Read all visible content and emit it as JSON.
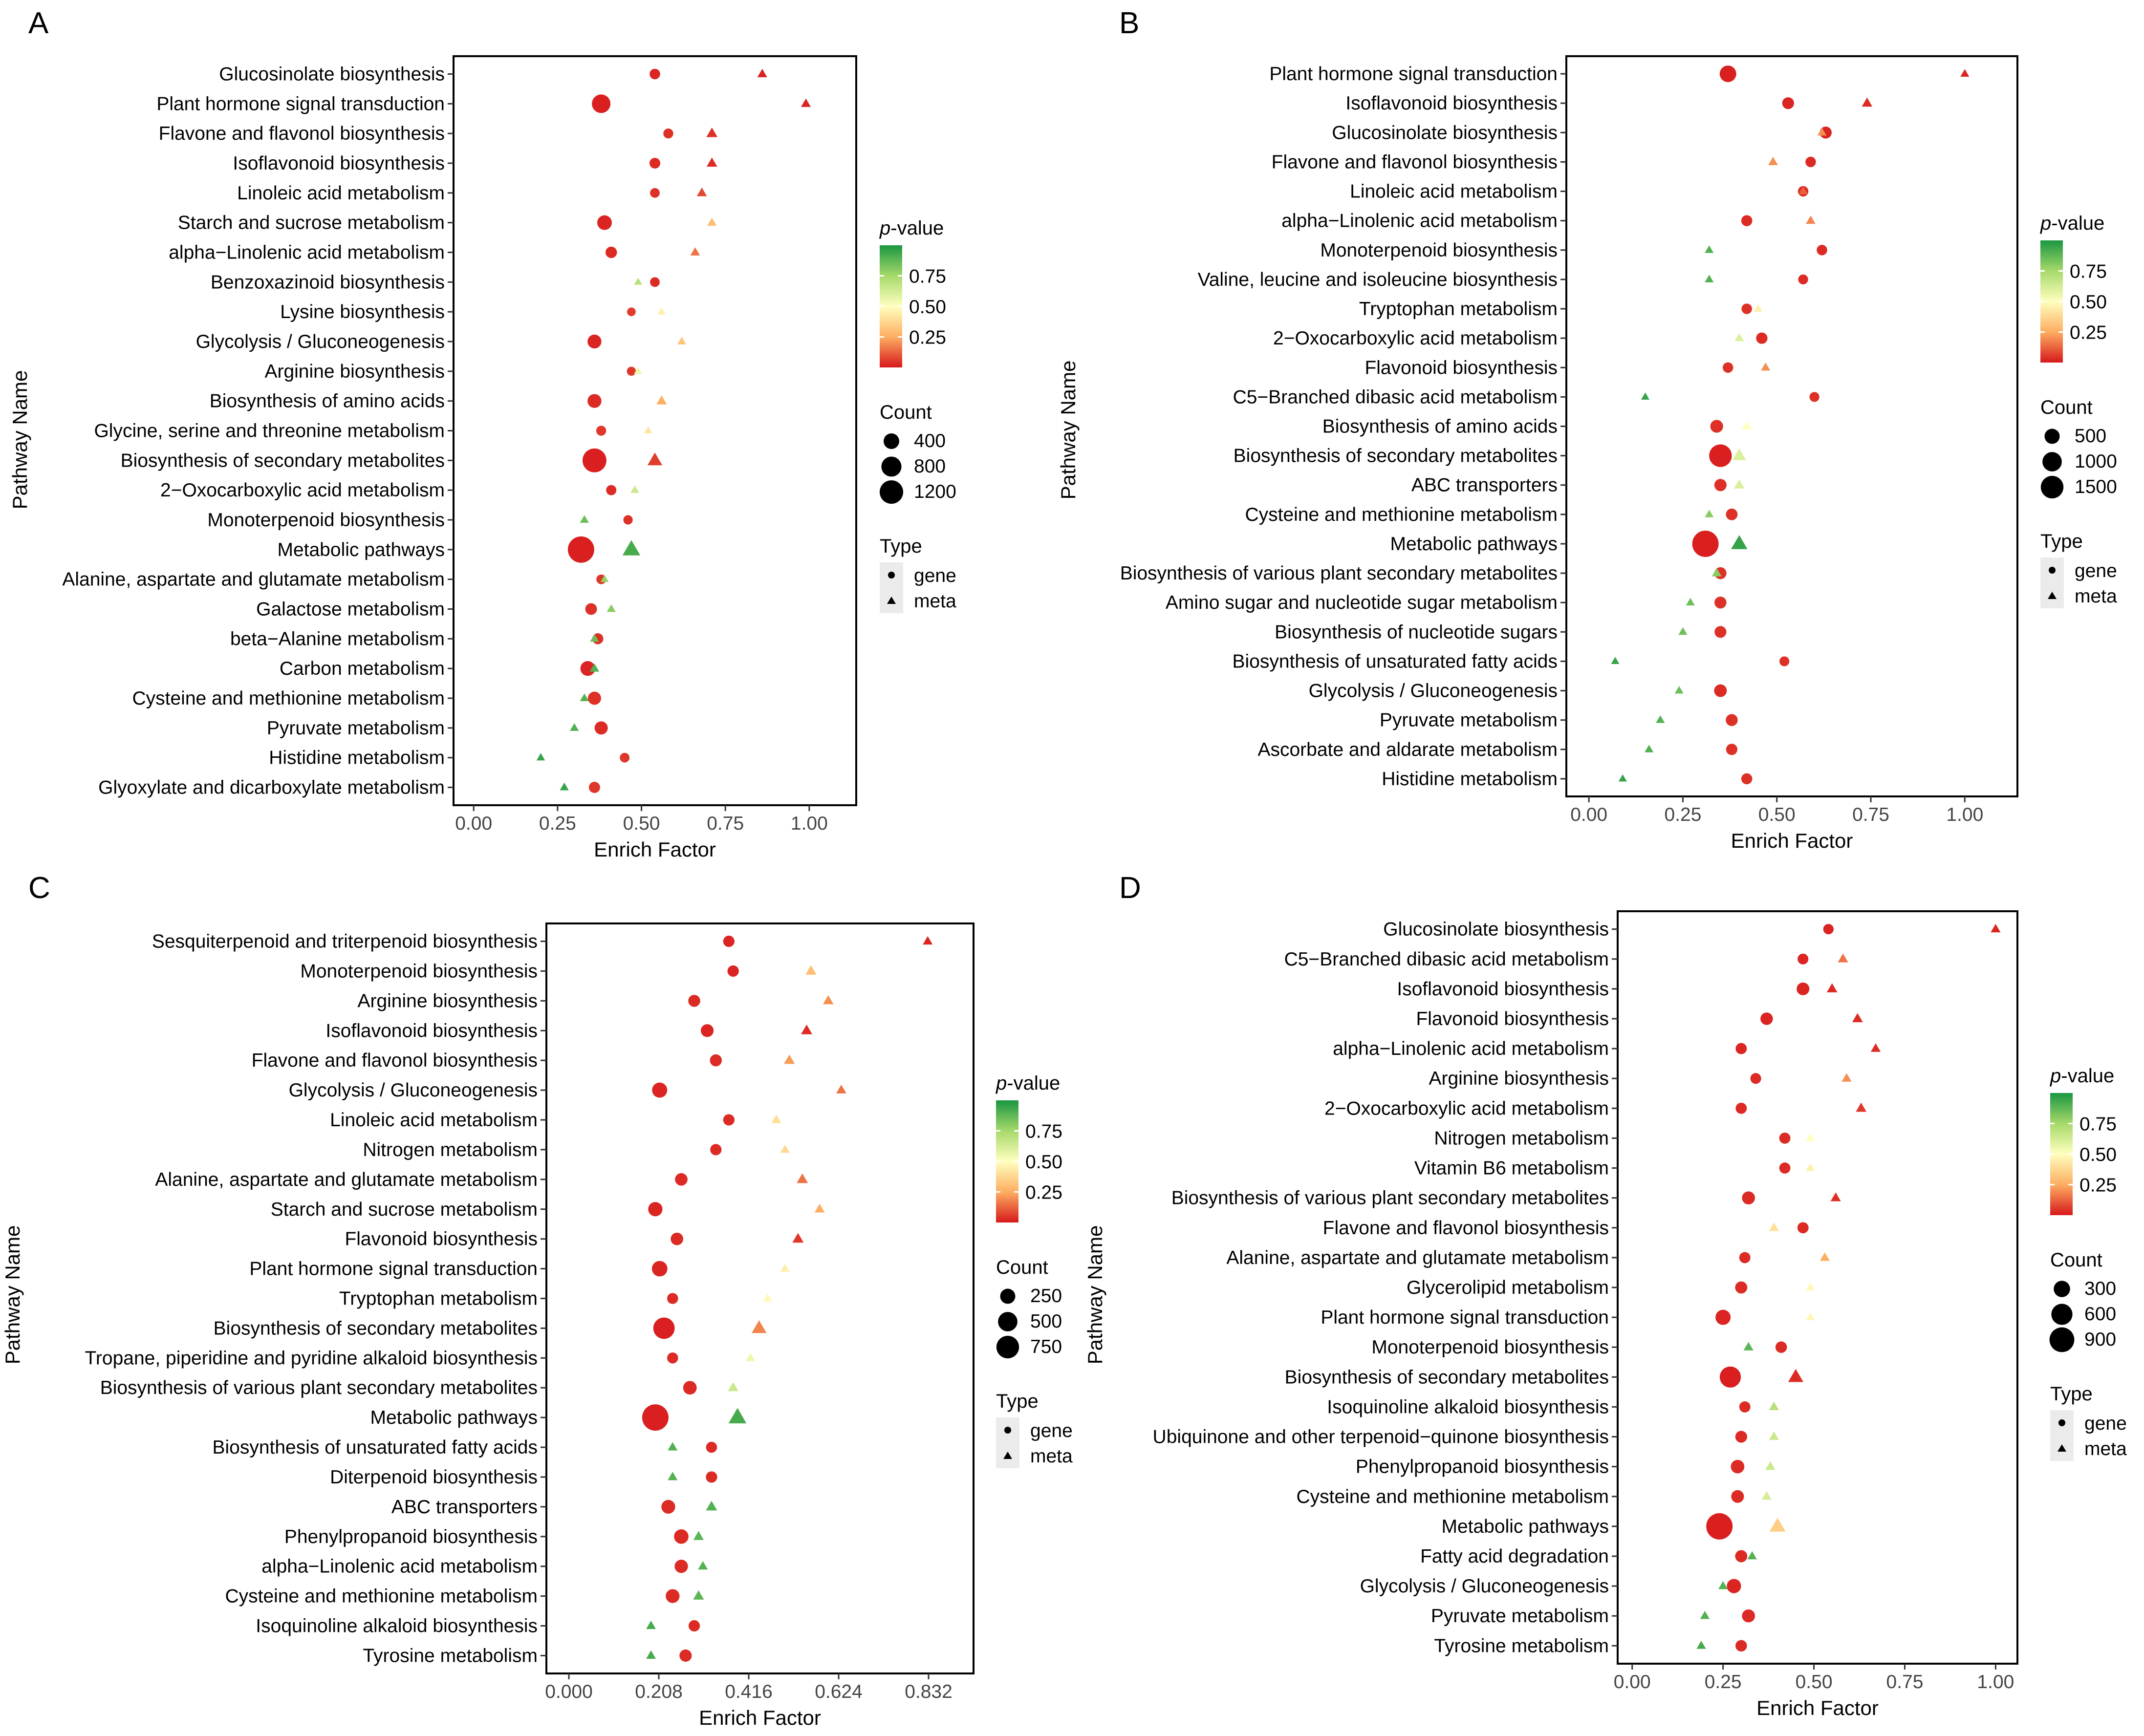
{
  "figure": {
    "legend_labels": {
      "pvalue_title_italic": "p",
      "pvalue_title_rest": "-value",
      "count_title": "Count",
      "type_title": "Type",
      "gene": "gene",
      "meta": "meta"
    },
    "y_axis_label": "Pathway Name",
    "x_axis_label": "Enrich Factor"
  },
  "colors": {
    "low_p": "#d7191c",
    "mid_low_p": "#fdae61",
    "mid_p": "#ffffbf",
    "mid_high_p": "#a6d96a",
    "high_p": "#1a9641",
    "legend_key_bg": "#ebebeb"
  },
  "chart_data": [
    {
      "panel": "A",
      "type": "scatter",
      "xlabel": "Enrich Factor",
      "ylabel": "Pathway Name",
      "xlim": [
        -0.06,
        1.14
      ],
      "xticks": [
        0,
        0.25,
        0.5,
        0.75,
        1.0
      ],
      "xtick_labels": [
        "0.00",
        "0.25",
        "0.50",
        "0.75",
        "1.00"
      ],
      "legend_pvalue_ticks": [
        0.25,
        0.5,
        0.75
      ],
      "legend_count": [
        400,
        800,
        1200
      ],
      "categories": [
        "Glucosinolate biosynthesis",
        "Plant hormone signal transduction",
        "Flavone and flavonol biosynthesis",
        "Isoflavonoid biosynthesis",
        "Linoleic acid metabolism",
        "Starch and sucrose metabolism",
        "alpha−Linolenic acid metabolism",
        "Benzoxazinoid biosynthesis",
        "Lysine biosynthesis",
        "Glycolysis / Gluconeogenesis",
        "Arginine biosynthesis",
        "Biosynthesis of amino acids",
        "Glycine, serine and threonine metabolism",
        "Biosynthesis of secondary metabolites",
        "2−Oxocarboxylic acid metabolism",
        "Monoterpenoid biosynthesis",
        "Metabolic pathways",
        "Alanine, aspartate and glutamate metabolism",
        "Galactose metabolism",
        "beta−Alanine metabolism",
        "Carbon metabolism",
        "Cysteine and methionine metabolism",
        "Pyruvate metabolism",
        "Histidine metabolism",
        "Glyoxylate and dicarboxylate metabolism"
      ],
      "series": [
        {
          "name": "gene",
          "x": [
            0.54,
            0.38,
            0.58,
            0.54,
            0.54,
            0.39,
            0.41,
            0.54,
            0.47,
            0.36,
            0.47,
            0.36,
            0.38,
            0.36,
            0.41,
            0.46,
            0.32,
            0.38,
            0.35,
            0.37,
            0.34,
            0.36,
            0.38,
            0.45,
            0.36
          ],
          "p": [
            0.02,
            0.01,
            0.04,
            0.03,
            0.04,
            0.02,
            0.03,
            0.03,
            0.06,
            0.02,
            0.05,
            0.03,
            0.05,
            0.01,
            0.03,
            0.04,
            0.01,
            0.05,
            0.04,
            0.04,
            0.02,
            0.04,
            0.03,
            0.05,
            0.05
          ],
          "count": [
            110,
            650,
            90,
            120,
            80,
            330,
            150,
            80,
            50,
            280,
            60,
            280,
            90,
            1250,
            100,
            70,
            1600,
            80,
            160,
            130,
            340,
            240,
            240,
            80,
            140
          ]
        },
        {
          "name": "meta",
          "x": [
            0.86,
            0.99,
            0.71,
            0.71,
            0.68,
            0.71,
            0.66,
            0.49,
            0.56,
            0.62,
            0.49,
            0.56,
            0.52,
            0.54,
            0.48,
            0.33,
            0.47,
            0.39,
            0.41,
            0.36,
            0.36,
            0.33,
            0.3,
            0.2,
            0.27
          ],
          "p": [
            0.02,
            0.02,
            0.04,
            0.03,
            0.08,
            0.3,
            0.15,
            0.7,
            0.45,
            0.32,
            0.55,
            0.25,
            0.42,
            0.06,
            0.65,
            0.85,
            0.92,
            0.78,
            0.8,
            0.85,
            0.9,
            0.9,
            0.9,
            0.95,
            0.95
          ],
          "count": [
            90,
            90,
            140,
            120,
            100,
            80,
            80,
            40,
            40,
            60,
            40,
            110,
            40,
            350,
            50,
            60,
            600,
            40,
            60,
            60,
            80,
            60,
            60,
            50,
            60
          ]
        }
      ]
    },
    {
      "panel": "B",
      "type": "scatter",
      "xlabel": "Enrich Factor",
      "ylabel": "Pathway Name",
      "xlim": [
        -0.06,
        1.14
      ],
      "xticks": [
        0,
        0.25,
        0.5,
        0.75,
        1.0
      ],
      "xtick_labels": [
        "0.00",
        "0.25",
        "0.50",
        "0.75",
        "1.00"
      ],
      "legend_pvalue_ticks": [
        0.25,
        0.5,
        0.75
      ],
      "legend_count": [
        500,
        1000,
        1500
      ],
      "categories": [
        "Plant hormone signal transduction",
        "Isoflavonoid biosynthesis",
        "Glucosinolate biosynthesis",
        "Flavone and flavonol biosynthesis",
        "Linoleic acid metabolism",
        "alpha−Linolenic acid metabolism",
        "Monoterpenoid biosynthesis",
        "Valine, leucine and isoleucine biosynthesis",
        "Tryptophan metabolism",
        "2−Oxocarboxylic acid metabolism",
        "Flavonoid biosynthesis",
        "C5−Branched dibasic acid metabolism",
        "Biosynthesis of amino acids",
        "Biosynthesis of secondary metabolites",
        "ABC transporters",
        "Cysteine and methionine metabolism",
        "Metabolic pathways",
        "Biosynthesis of various plant secondary metabolites",
        "Amino sugar and nucleotide sugar metabolism",
        "Biosynthesis of nucleotide sugars",
        "Biosynthesis of unsaturated fatty acids",
        "Glycolysis / Gluconeogenesis",
        "Pyruvate metabolism",
        "Ascorbate and aldarate metabolism",
        "Histidine metabolism"
      ],
      "series": [
        {
          "name": "gene",
          "x": [
            0.37,
            0.53,
            0.63,
            0.59,
            0.57,
            0.42,
            0.62,
            0.57,
            0.42,
            0.46,
            0.37,
            0.6,
            0.34,
            0.35,
            0.35,
            0.38,
            0.31,
            0.35,
            0.35,
            0.35,
            0.52,
            0.35,
            0.38,
            0.38,
            0.42
          ],
          "p": [
            0.01,
            0.02,
            0.02,
            0.03,
            0.03,
            0.03,
            0.03,
            0.03,
            0.04,
            0.03,
            0.04,
            0.04,
            0.04,
            0.01,
            0.04,
            0.04,
            0.01,
            0.04,
            0.04,
            0.04,
            0.04,
            0.03,
            0.04,
            0.04,
            0.04
          ],
          "count": [
            650,
            230,
            240,
            150,
            150,
            180,
            150,
            120,
            150,
            200,
            150,
            120,
            300,
            1500,
            260,
            220,
            2200,
            240,
            240,
            230,
            120,
            290,
            240,
            200,
            180
          ]
        },
        {
          "name": "meta",
          "x": [
            1.0,
            0.74,
            0.62,
            0.49,
            0.57,
            0.59,
            0.32,
            0.32,
            0.45,
            0.4,
            0.47,
            0.15,
            0.42,
            0.4,
            0.4,
            0.32,
            0.4,
            0.34,
            0.27,
            0.25,
            0.07,
            0.24,
            0.19,
            0.16,
            0.09
          ],
          "p": [
            0.02,
            0.03,
            0.2,
            0.2,
            0.12,
            0.18,
            0.9,
            0.9,
            0.45,
            0.6,
            0.2,
            0.95,
            0.5,
            0.6,
            0.6,
            0.8,
            0.95,
            0.8,
            0.85,
            0.85,
            0.95,
            0.85,
            0.9,
            0.9,
            0.95
          ],
          "count": [
            80,
            160,
            90,
            120,
            100,
            110,
            80,
            80,
            80,
            100,
            100,
            60,
            120,
            380,
            170,
            80,
            650,
            120,
            80,
            80,
            60,
            80,
            80,
            80,
            60
          ]
        }
      ]
    },
    {
      "panel": "C",
      "type": "scatter",
      "xlabel": "Enrich Factor",
      "ylabel": "Pathway Name",
      "xlim": [
        -0.052,
        0.936
      ],
      "xticks": [
        0,
        0.208,
        0.416,
        0.624,
        0.832
      ],
      "xtick_labels": [
        "0.000",
        "0.208",
        "0.416",
        "0.624",
        "0.832"
      ],
      "legend_pvalue_ticks": [
        0.25,
        0.5,
        0.75
      ],
      "legend_count": [
        250,
        500,
        750
      ],
      "categories": [
        "Sesquiterpenoid and triterpenoid biosynthesis",
        "Monoterpenoid biosynthesis",
        "Arginine biosynthesis",
        "Isoflavonoid biosynthesis",
        "Flavone and flavonol biosynthesis",
        "Glycolysis / Gluconeogenesis",
        "Linoleic acid metabolism",
        "Nitrogen metabolism",
        "Alanine, aspartate and glutamate metabolism",
        "Starch and sucrose metabolism",
        "Flavonoid biosynthesis",
        "Plant hormone signal transduction",
        "Tryptophan metabolism",
        "Biosynthesis of secondary metabolites",
        "Tropane, piperidine and pyridine alkaloid biosynthesis",
        "Biosynthesis of various plant secondary metabolites",
        "Metabolic pathways",
        "Biosynthesis of unsaturated fatty acids",
        "Diterpenoid biosynthesis",
        "ABC transporters",
        "Phenylpropanoid biosynthesis",
        "alpha−Linolenic acid metabolism",
        "Cysteine and methionine metabolism",
        "Isoquinoline alkaloid biosynthesis",
        "Tyrosine metabolism"
      ],
      "series": [
        {
          "name": "gene",
          "x": [
            0.37,
            0.38,
            0.29,
            0.32,
            0.34,
            0.21,
            0.37,
            0.34,
            0.26,
            0.2,
            0.25,
            0.21,
            0.24,
            0.22,
            0.24,
            0.28,
            0.2,
            0.33,
            0.33,
            0.23,
            0.26,
            0.26,
            0.24,
            0.29,
            0.27
          ],
          "p": [
            0.02,
            0.02,
            0.03,
            0.02,
            0.03,
            0.02,
            0.03,
            0.03,
            0.03,
            0.02,
            0.03,
            0.02,
            0.03,
            0.01,
            0.03,
            0.03,
            0.01,
            0.03,
            0.03,
            0.03,
            0.03,
            0.03,
            0.03,
            0.03,
            0.03
          ],
          "count": [
            100,
            100,
            120,
            150,
            120,
            250,
            100,
            100,
            140,
            210,
            140,
            270,
            90,
            650,
            90,
            180,
            1100,
            90,
            100,
            190,
            220,
            170,
            190,
            100,
            130
          ]
        },
        {
          "name": "meta",
          "x": [
            0.83,
            0.56,
            0.6,
            0.55,
            0.51,
            0.63,
            0.48,
            0.5,
            0.54,
            0.58,
            0.53,
            0.5,
            0.46,
            0.44,
            0.42,
            0.38,
            0.39,
            0.24,
            0.24,
            0.33,
            0.3,
            0.31,
            0.3,
            0.19,
            0.19
          ],
          "p": [
            0.02,
            0.3,
            0.2,
            0.03,
            0.22,
            0.15,
            0.4,
            0.38,
            0.15,
            0.25,
            0.05,
            0.45,
            0.48,
            0.18,
            0.55,
            0.65,
            0.92,
            0.9,
            0.9,
            0.9,
            0.88,
            0.9,
            0.88,
            0.92,
            0.92
          ],
          "count": [
            60,
            90,
            80,
            100,
            90,
            70,
            60,
            50,
            100,
            70,
            100,
            50,
            50,
            250,
            50,
            80,
            420,
            60,
            60,
            100,
            80,
            60,
            90,
            60,
            60
          ]
        }
      ]
    },
    {
      "panel": "D",
      "type": "scatter",
      "xlabel": "Enrich Factor",
      "ylabel": "Pathway Name",
      "xlim": [
        -0.04,
        1.06
      ],
      "xticks": [
        0,
        0.25,
        0.5,
        0.75,
        1.0
      ],
      "xtick_labels": [
        "0.00",
        "0.25",
        "0.50",
        "0.75",
        "1.00"
      ],
      "legend_pvalue_ticks": [
        0.25,
        0.5,
        0.75
      ],
      "legend_count": [
        300,
        600,
        900
      ],
      "categories": [
        "Glucosinolate biosynthesis",
        "C5−Branched dibasic acid metabolism",
        "Isoflavonoid biosynthesis",
        "Flavonoid biosynthesis",
        "alpha−Linolenic acid metabolism",
        "Arginine biosynthesis",
        "2−Oxocarboxylic acid metabolism",
        "Nitrogen metabolism",
        "Vitamin B6 metabolism",
        "Biosynthesis of various plant secondary metabolites",
        "Flavone and flavonol biosynthesis",
        "Alanine, aspartate and glutamate metabolism",
        "Glycerolipid metabolism",
        "Plant hormone signal transduction",
        "Monoterpenoid biosynthesis",
        "Biosynthesis of secondary metabolites",
        "Isoquinoline alkaloid biosynthesis",
        "Ubiquinone and other terpenoid−quinone biosynthesis",
        "Phenylpropanoid biosynthesis",
        "Cysteine and methionine metabolism",
        "Metabolic pathways",
        "Fatty acid degradation",
        "Glycolysis / Gluconeogenesis",
        "Pyruvate metabolism",
        "Tyrosine metabolism"
      ],
      "series": [
        {
          "name": "gene",
          "x": [
            0.54,
            0.47,
            0.47,
            0.37,
            0.3,
            0.34,
            0.3,
            0.42,
            0.42,
            0.32,
            0.47,
            0.31,
            0.3,
            0.25,
            0.41,
            0.27,
            0.31,
            0.3,
            0.29,
            0.29,
            0.24,
            0.3,
            0.28,
            0.32,
            0.3
          ],
          "p": [
            0.02,
            0.02,
            0.02,
            0.02,
            0.02,
            0.03,
            0.03,
            0.03,
            0.03,
            0.03,
            0.03,
            0.03,
            0.03,
            0.02,
            0.03,
            0.01,
            0.03,
            0.03,
            0.03,
            0.03,
            0.01,
            0.03,
            0.02,
            0.03,
            0.03
          ],
          "count": [
            70,
            80,
            140,
            130,
            90,
            80,
            90,
            90,
            90,
            150,
            90,
            90,
            120,
            240,
            100,
            600,
            90,
            110,
            170,
            140,
            1050,
            120,
            200,
            150,
            100
          ]
        },
        {
          "name": "meta",
          "x": [
            1.0,
            0.58,
            0.55,
            0.62,
            0.67,
            0.59,
            0.63,
            0.49,
            0.49,
            0.56,
            0.39,
            0.53,
            0.49,
            0.49,
            0.32,
            0.45,
            0.39,
            0.39,
            0.38,
            0.37,
            0.4,
            0.33,
            0.25,
            0.2,
            0.19
          ],
          "p": [
            0.02,
            0.15,
            0.03,
            0.03,
            0.03,
            0.2,
            0.05,
            0.5,
            0.45,
            0.04,
            0.4,
            0.25,
            0.48,
            0.48,
            0.88,
            0.03,
            0.7,
            0.65,
            0.65,
            0.62,
            0.35,
            0.9,
            0.9,
            0.9,
            0.92
          ],
          "count": [
            60,
            70,
            80,
            80,
            60,
            60,
            80,
            40,
            40,
            70,
            60,
            60,
            40,
            40,
            60,
            250,
            60,
            60,
            60,
            60,
            300,
            50,
            50,
            50,
            50
          ]
        }
      ]
    }
  ]
}
